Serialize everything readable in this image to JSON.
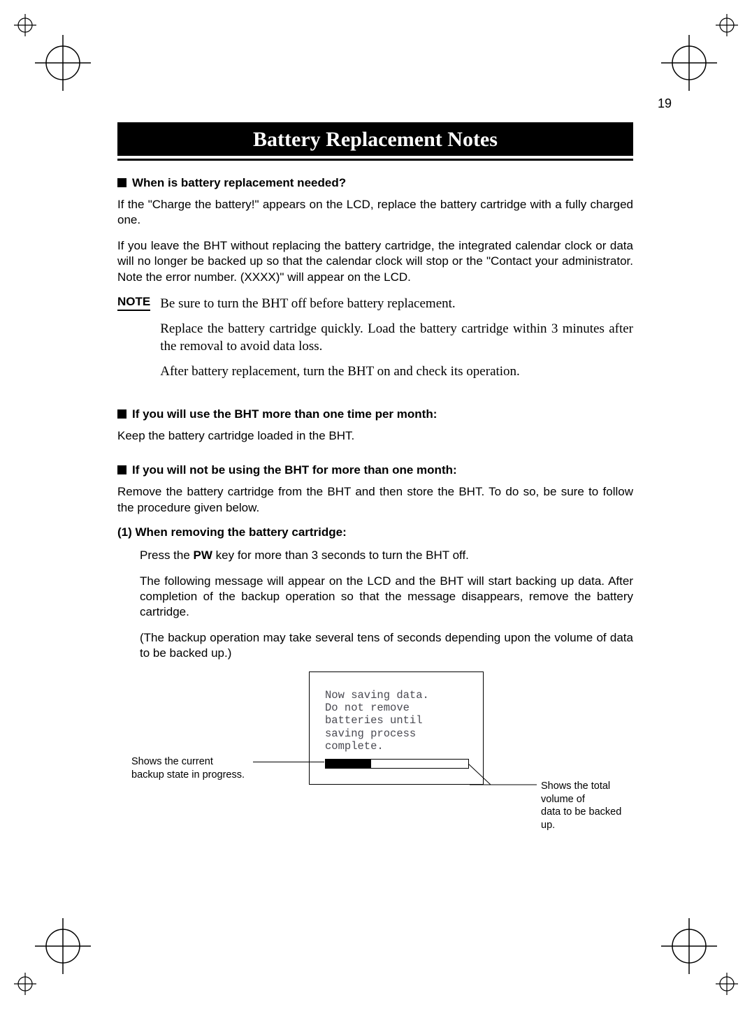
{
  "page_number": "19",
  "title": "Battery Replacement Notes",
  "sections": {
    "s1": {
      "heading": "When is battery replacement needed?",
      "p1": "If the \"Charge the battery!\" appears on the LCD, replace the battery cartridge with a fully charged one.",
      "p2": "If you leave the BHT without replacing the battery cartridge, the integrated calendar clock or data will no longer be backed up so that the calendar clock will stop or the \"Contact your administrator. Note the error number. (XXXX)\" will appear on the LCD."
    },
    "note": {
      "label": "NOTE",
      "n1": "Be sure to turn the BHT off before battery replacement.",
      "n2": "Replace the battery cartridge quickly. Load the battery cartridge within 3 minutes after the removal to avoid data loss.",
      "n3": "After battery replacement, turn the BHT on and check its operation."
    },
    "s2": {
      "heading": "If you will use the BHT more than one time per month:",
      "p1": "Keep the battery cartridge loaded in the BHT."
    },
    "s3": {
      "heading": "If you will not be using the BHT for more than one month:",
      "p1": "Remove the battery cartridge from the BHT and then store the BHT. To do so, be sure to follow the procedure given below.",
      "step1_heading": "(1)  When removing the battery cartridge:",
      "step1_p1_a": "Press the ",
      "step1_p1_pw": "PW",
      "step1_p1_b": " key for more than 3 seconds to turn the BHT off.",
      "step1_p2": "The following message will appear on the LCD and the BHT will start backing up data. After completion of the backup operation so that the message disappears, remove the battery cartridge.",
      "step1_p3": "(The backup operation may take several tens of seconds depending upon the volume of data to be backed up.)"
    },
    "lcd": {
      "line1": "Now saving data.",
      "line2": "Do not remove",
      "line3": "batteries until",
      "line4": "saving process",
      "line5": "complete.",
      "progress_percent": 32
    },
    "labels": {
      "left": "Shows the current\nbackup state in progress.",
      "right": "Shows the total volume of\ndata to be backed up."
    }
  },
  "colors": {
    "black": "#000000",
    "white": "#ffffff",
    "lcd_text": "#4a4a52"
  }
}
